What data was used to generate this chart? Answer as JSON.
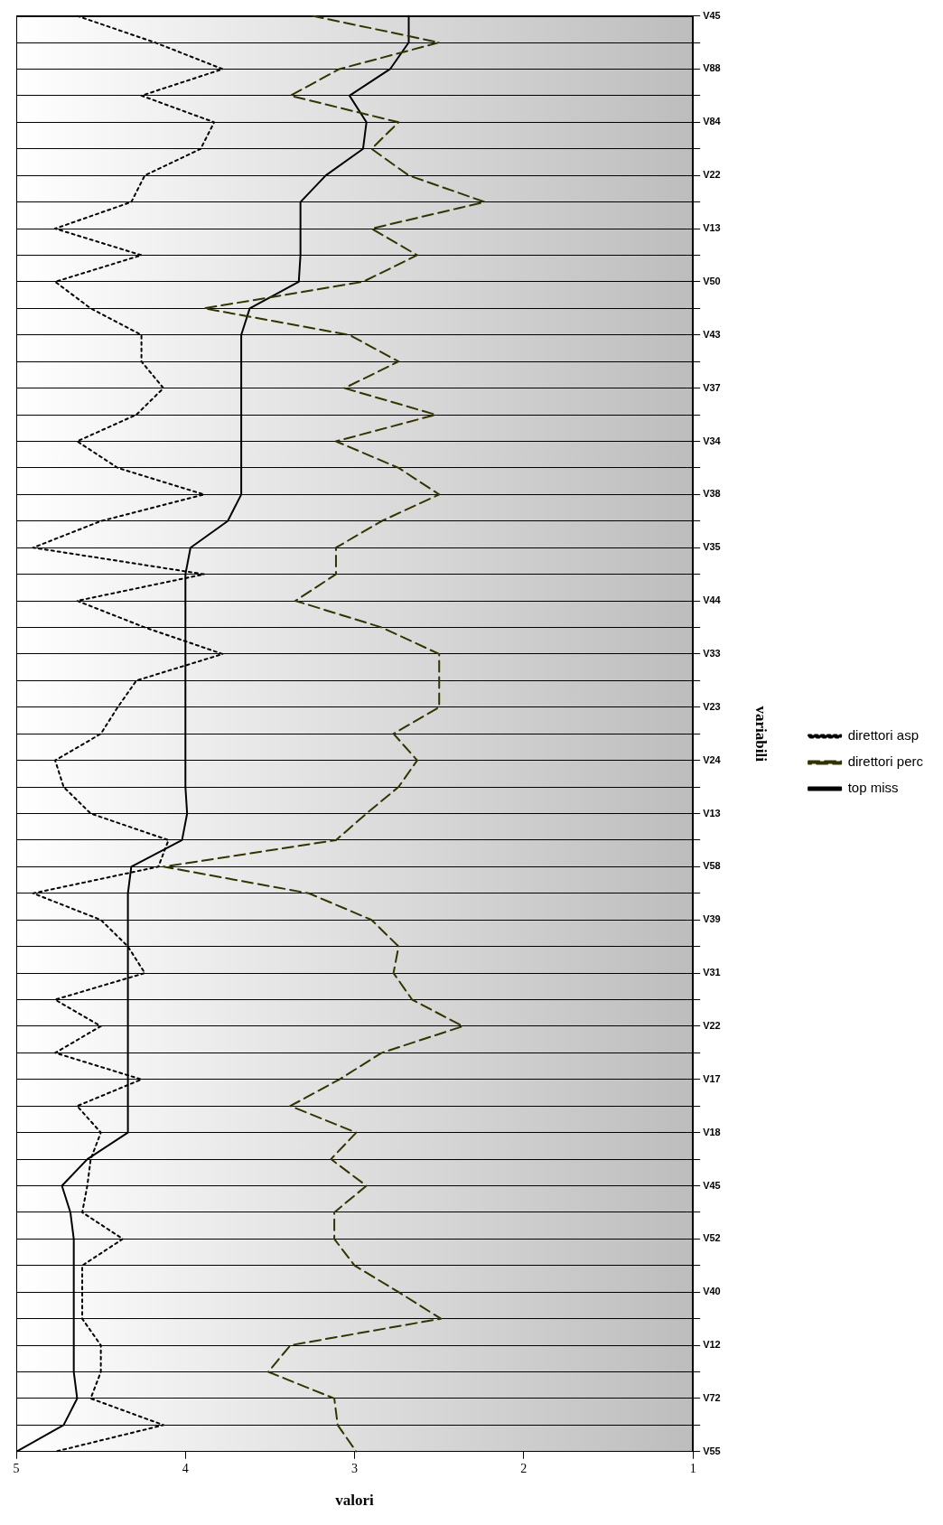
{
  "chart_data": {
    "type": "line",
    "orientation": "horizontal",
    "xlabel": "valori",
    "ylabel": "variabili",
    "categories": [
      "V45",
      null,
      "V88",
      null,
      "V84",
      null,
      "V22",
      null,
      "V13",
      null,
      "V50",
      null,
      "V43",
      null,
      "V37",
      null,
      "V34",
      null,
      "V38",
      null,
      "V35",
      null,
      "V44",
      null,
      "V33",
      null,
      "V23",
      null,
      "V24",
      null,
      "V13",
      null,
      "V58",
      null,
      "V39",
      null,
      "V31",
      null,
      "V22",
      null,
      "V17",
      null,
      "V18",
      null,
      "V45",
      null,
      "V52",
      null,
      "V40",
      null,
      "V12",
      null,
      "V72",
      null,
      "V55"
    ],
    "xlim": [
      5,
      1
    ],
    "xticks": [
      5,
      4,
      3,
      2,
      1
    ],
    "grid": "y",
    "legend": "right",
    "marker": "none",
    "series": [
      {
        "name": "direttori asp",
        "color": "#000000",
        "line_style": "dotted",
        "values": [
          4.64,
          4.18,
          3.78,
          4.26,
          3.83,
          3.91,
          4.24,
          4.32,
          4.77,
          4.26,
          4.77,
          4.56,
          4.26,
          4.26,
          4.13,
          4.29,
          4.64,
          4.4,
          3.89,
          4.5,
          4.9,
          3.89,
          4.64,
          4.24,
          3.78,
          4.29,
          4.4,
          4.5,
          4.77,
          4.72,
          4.56,
          4.1,
          4.16,
          4.9,
          4.5,
          4.34,
          4.24,
          4.77,
          4.5,
          4.77,
          4.26,
          4.64,
          4.5,
          4.56,
          4.58,
          4.61,
          4.37,
          4.61,
          4.61,
          4.61,
          4.5,
          4.5,
          4.56,
          4.13,
          4.77
        ]
      },
      {
        "name": "direttori perc",
        "color": "#333300",
        "line_style": "dashed",
        "values": [
          3.25,
          2.5,
          3.09,
          3.38,
          2.74,
          2.9,
          2.68,
          2.23,
          2.9,
          2.63,
          2.95,
          3.89,
          3.03,
          2.74,
          3.06,
          2.52,
          3.11,
          2.74,
          2.5,
          2.84,
          3.11,
          3.11,
          3.35,
          2.84,
          2.5,
          2.5,
          2.5,
          2.77,
          2.63,
          2.74,
          2.93,
          3.11,
          4.13,
          3.27,
          2.9,
          2.74,
          2.77,
          2.66,
          2.36,
          2.84,
          3.09,
          3.38,
          2.99,
          3.14,
          2.93,
          3.12,
          3.12,
          3.0,
          2.74,
          2.49,
          3.38,
          3.51,
          3.12,
          3.1,
          2.99
        ]
      },
      {
        "name": "top miss",
        "color": "#000000",
        "line_style": "solid",
        "values": [
          2.68,
          2.68,
          2.79,
          3.03,
          2.93,
          2.95,
          3.17,
          3.32,
          3.32,
          3.32,
          3.33,
          3.62,
          3.67,
          3.67,
          3.67,
          3.67,
          3.67,
          3.67,
          3.67,
          3.75,
          3.97,
          4.0,
          4.0,
          4.0,
          4.0,
          4.0,
          4.0,
          4.0,
          4.0,
          4.0,
          3.99,
          4.02,
          4.32,
          4.34,
          4.34,
          4.34,
          4.34,
          4.34,
          4.34,
          4.34,
          4.34,
          4.34,
          4.34,
          4.58,
          4.73,
          4.68,
          4.66,
          4.66,
          4.66,
          4.66,
          4.66,
          4.66,
          4.64,
          4.72,
          5.0
        ]
      }
    ]
  }
}
